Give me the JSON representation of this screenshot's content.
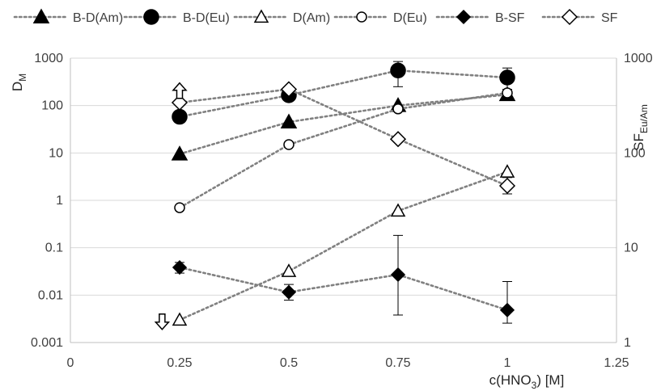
{
  "chart_data": {
    "type": "scatter",
    "x": [
      0.25,
      0.5,
      0.75,
      1
    ],
    "xlim": [
      0,
      1.25
    ],
    "x_ticks": [
      "0",
      "0.25",
      "0.5",
      "0.75",
      "1",
      "1.25"
    ],
    "xlabel": {
      "prefix": "c(HNO",
      "sub": "3",
      "suffix": ") [M]"
    },
    "ylim_left": [
      0.001,
      1000
    ],
    "y_scale_left": "log",
    "y_ticks_left": [
      "0.001",
      "0.01",
      "0.1",
      "1",
      "10",
      "100",
      "1000"
    ],
    "ylabel_left": {
      "main": "D",
      "sub": "M"
    },
    "ylim_right": [
      1,
      1000
    ],
    "y_scale_right": "log",
    "y_ticks_right": [
      "1",
      "10",
      "100",
      "1000"
    ],
    "ylabel_right": {
      "main": "SF",
      "sub": "Eu/Am"
    },
    "grid": "horizontal",
    "legend_position": "top",
    "series": [
      {
        "name": "B-D(Am)",
        "axis": "left",
        "marker": "triangle-filled",
        "values": [
          9.5,
          45,
          100,
          170
        ]
      },
      {
        "name": "B-D(Eu)",
        "axis": "left",
        "marker": "circle-filled",
        "values": [
          58,
          165,
          550,
          390
        ],
        "error": [
          null,
          null,
          [
            250,
            850
          ],
          [
            220,
            620
          ]
        ]
      },
      {
        "name": "D(Am)",
        "axis": "left",
        "marker": "triangle-open",
        "values": [
          0.003,
          0.032,
          0.6,
          4
        ]
      },
      {
        "name": "D(Eu)",
        "axis": "left",
        "marker": "circle-open",
        "values": [
          0.7,
          15,
          85,
          185
        ]
      },
      {
        "name": "B-SF",
        "axis": "right",
        "marker": "diamond-filled",
        "values": [
          6.2,
          3.4,
          5.2,
          2.2
        ],
        "error": [
          [
            5.4,
            7
          ],
          [
            2.8,
            4.1
          ],
          [
            1.95,
            13.5
          ],
          [
            1.6,
            4.4
          ]
        ]
      },
      {
        "name": "SF",
        "axis": "right",
        "marker": "diamond-open",
        "values": [
          340,
          470,
          140,
          45
        ],
        "error": [
          null,
          null,
          null,
          [
            37,
            55
          ]
        ]
      }
    ],
    "annotations": [
      {
        "type": "arrow-up",
        "axis": "right",
        "x": 0.25,
        "y": 450
      },
      {
        "type": "arrow-down",
        "axis": "left",
        "x": 0.21,
        "y": 0.0028
      }
    ],
    "colors": {
      "line": "#808080",
      "marker": "#000000",
      "grid": "#d9d9d9",
      "axis": "#bfbfbf",
      "text": "#404040"
    }
  }
}
